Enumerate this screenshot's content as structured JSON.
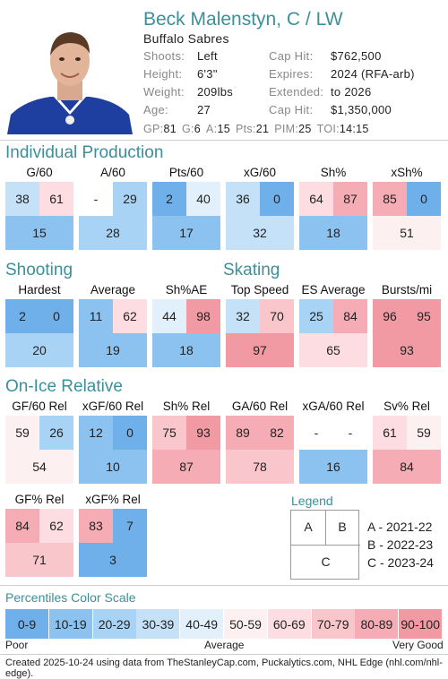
{
  "player": {
    "name": "Beck Malenstyn, C / LW",
    "team": "Buffalo Sabres",
    "left_info": [
      {
        "label": "Shoots:",
        "value": "Left"
      },
      {
        "label": "Height:",
        "value": "6'3\""
      },
      {
        "label": "Weight:",
        "value": "209lbs"
      },
      {
        "label": "Age:",
        "value": "27"
      }
    ],
    "right_info": [
      {
        "label": "Cap Hit:",
        "value": "$762,500"
      },
      {
        "label": "Expires:",
        "value": "2024 (RFA-arb)"
      },
      {
        "label": "Extended:",
        "value": "to 2026"
      },
      {
        "label": "Cap Hit:",
        "value": "$1,350,000"
      }
    ],
    "stats": [
      {
        "label": "GP:",
        "value": "81"
      },
      {
        "label": "G:",
        "value": "6"
      },
      {
        "label": "A:",
        "value": "15"
      },
      {
        "label": "Pts:",
        "value": "21"
      },
      {
        "label": "PIM:",
        "value": "25"
      },
      {
        "label": "TOI:",
        "value": "14:15"
      }
    ]
  },
  "sections": {
    "individual": "Individual Production",
    "shooting": "Shooting",
    "skating": "Skating",
    "onice": "On-Ice Relative"
  },
  "metrics": {
    "g60": {
      "label": "G/60",
      "a": "38",
      "b": "61",
      "c": "15"
    },
    "a60": {
      "label": "A/60",
      "a": "-",
      "b": "29",
      "c": "28"
    },
    "pts60": {
      "label": "Pts/60",
      "a": "2",
      "b": "40",
      "c": "17"
    },
    "xg60": {
      "label": "xG/60",
      "a": "36",
      "b": "0",
      "c": "32"
    },
    "shpct": {
      "label": "Sh%",
      "a": "64",
      "b": "87",
      "c": "18"
    },
    "xshpct": {
      "label": "xSh%",
      "a": "85",
      "b": "0",
      "c": "51"
    },
    "hardest": {
      "label": "Hardest",
      "a": "2",
      "b": "0",
      "c": "20"
    },
    "average": {
      "label": "Average",
      "a": "11",
      "b": "62",
      "c": "19"
    },
    "shpctae": {
      "label": "Sh%AE",
      "a": "44",
      "b": "98",
      "c": "18"
    },
    "topspeed": {
      "label": "Top Speed",
      "a": "32",
      "b": "70",
      "c": "97"
    },
    "esavg": {
      "label": "ES Average",
      "a": "25",
      "b": "84",
      "c": "65"
    },
    "bursts": {
      "label": "Bursts/mi",
      "a": "96",
      "b": "95",
      "c": "93"
    },
    "gf60rel": {
      "label": "GF/60 Rel",
      "a": "59",
      "b": "26",
      "c": "54"
    },
    "xgf60rel": {
      "label": "xGF/60 Rel",
      "a": "12",
      "b": "0",
      "c": "10"
    },
    "shrel": {
      "label": "Sh% Rel",
      "a": "75",
      "b": "93",
      "c": "87"
    },
    "ga60rel": {
      "label": "GA/60 Rel",
      "a": "89",
      "b": "82",
      "c": "78"
    },
    "xga60rel": {
      "label": "xGA/60 Rel",
      "a": "-",
      "b": "-",
      "c": "16"
    },
    "svrel": {
      "label": "Sv% Rel",
      "a": "61",
      "b": "59",
      "c": "84"
    },
    "gfpctrel": {
      "label": "GF% Rel",
      "a": "84",
      "b": "62",
      "c": "71"
    },
    "xgfpctrel": {
      "label": "xGF% Rel",
      "a": "83",
      "b": "7",
      "c": "3"
    }
  },
  "legend": {
    "title": "Legend",
    "a": "A",
    "b": "B",
    "c": "C",
    "a_text": "A - 2021-22",
    "b_text": "B - 2022-23",
    "c_text": "C - 2023-24"
  },
  "scale": {
    "title": "Percentiles Color Scale",
    "bins": [
      "0-9",
      "10-19",
      "20-29",
      "30-39",
      "40-49",
      "50-59",
      "60-69",
      "70-79",
      "80-89",
      "90-100"
    ],
    "poor": "Poor",
    "average": "Average",
    "very_good": "Very Good"
  },
  "footer": "Created 2025-10-24 using data from TheStanleyCap.com, Puckalytics.com, NHL Edge (nhl.com/nhl-edge)."
}
